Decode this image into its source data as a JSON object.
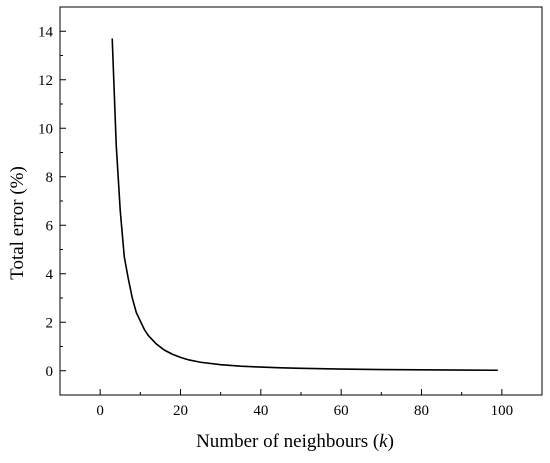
{
  "chart_data": {
    "type": "line",
    "xlabel": "Number of neighbours (",
    "xlabel_var": "k",
    "xlabel_close": ")",
    "ylabel": "Total error (%)",
    "xlim": [
      -10,
      110
    ],
    "ylim": [
      -1,
      15
    ],
    "xticks": [
      0,
      20,
      40,
      60,
      80,
      100
    ],
    "yticks": [
      0,
      2,
      4,
      6,
      8,
      10,
      12,
      14
    ],
    "grid": false,
    "series": [
      {
        "color": "#000000",
        "x": [
          3,
          4,
          5,
          6,
          7,
          8,
          9,
          10,
          11,
          12,
          14,
          16,
          18,
          20,
          22,
          25,
          30,
          35,
          40,
          45,
          50,
          60,
          70,
          80,
          90,
          99
        ],
        "y": [
          13.7,
          9.3,
          6.6,
          4.7,
          3.8,
          3.0,
          2.4,
          2.05,
          1.7,
          1.45,
          1.1,
          0.85,
          0.68,
          0.55,
          0.45,
          0.35,
          0.25,
          0.19,
          0.15,
          0.12,
          0.1,
          0.07,
          0.05,
          0.04,
          0.03,
          0.02
        ]
      }
    ]
  }
}
